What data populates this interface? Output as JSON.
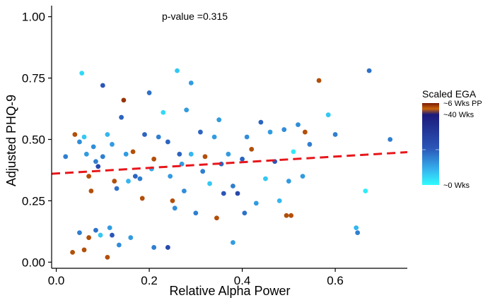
{
  "chart_data": {
    "type": "scatter",
    "xlabel": "Relative Alpha Power",
    "ylabel": "Adjusted PHQ-9",
    "annotation": "p-value =0.315",
    "xlim": [
      -0.01,
      0.755
    ],
    "ylim": [
      -0.025,
      1.045
    ],
    "x_ticks": [
      0.0,
      0.2,
      0.4,
      0.6
    ],
    "x_tick_labels": [
      "0.0",
      "0.2",
      "0.4",
      "0.6"
    ],
    "y_ticks": [
      0.0,
      0.25,
      0.5,
      0.75,
      1.0
    ],
    "y_tick_labels": [
      "0.00",
      "0.25",
      "0.50",
      "0.75",
      "1.00"
    ],
    "trend_line": {
      "color": "#e8161b",
      "style": "dashed",
      "x": [
        -0.01,
        0.755
      ],
      "y": [
        0.36,
        0.448
      ]
    },
    "color_scale": {
      "title": "Scaled EGA",
      "labels": [
        "~6 Wks PP",
        "~40 Wks",
        "~0 Wks"
      ],
      "colors": [
        "#7a1a05",
        "#c8640a",
        "#1c1a7a",
        "#2b56b8",
        "#35b6f0",
        "#2ffcfc"
      ]
    },
    "points": [
      {
        "x": 0.02,
        "y": 0.43,
        "c": 0.4
      },
      {
        "x": 0.04,
        "y": 0.52,
        "c": 0.9
      },
      {
        "x": 0.05,
        "y": 0.49,
        "c": 0.35
      },
      {
        "x": 0.055,
        "y": 0.77,
        "c": 0.1
      },
      {
        "x": 0.06,
        "y": 0.51,
        "c": 0.15
      },
      {
        "x": 0.065,
        "y": 0.44,
        "c": 0.3
      },
      {
        "x": 0.07,
        "y": 0.35,
        "c": 0.9
      },
      {
        "x": 0.075,
        "y": 0.29,
        "c": 0.9
      },
      {
        "x": 0.08,
        "y": 0.47,
        "c": 0.35
      },
      {
        "x": 0.085,
        "y": 0.41,
        "c": 0.4
      },
      {
        "x": 0.09,
        "y": 0.39,
        "c": 0.6
      },
      {
        "x": 0.1,
        "y": 0.72,
        "c": 0.55
      },
      {
        "x": 0.1,
        "y": 0.43,
        "c": 0.4
      },
      {
        "x": 0.11,
        "y": 0.52,
        "c": 0.2
      },
      {
        "x": 0.12,
        "y": 0.48,
        "c": 0.3
      },
      {
        "x": 0.125,
        "y": 0.33,
        "c": 0.9
      },
      {
        "x": 0.13,
        "y": 0.3,
        "c": 0.45
      },
      {
        "x": 0.14,
        "y": 0.59,
        "c": 0.5
      },
      {
        "x": 0.145,
        "y": 0.66,
        "c": 0.95
      },
      {
        "x": 0.15,
        "y": 0.44,
        "c": 0.3
      },
      {
        "x": 0.155,
        "y": 0.33,
        "c": 0.2
      },
      {
        "x": 0.165,
        "y": 0.45,
        "c": 0.9
      },
      {
        "x": 0.17,
        "y": 0.35,
        "c": 0.5
      },
      {
        "x": 0.18,
        "y": 0.34,
        "c": 0.4
      },
      {
        "x": 0.185,
        "y": 0.26,
        "c": 0.9
      },
      {
        "x": 0.19,
        "y": 0.52,
        "c": 0.5
      },
      {
        "x": 0.2,
        "y": 0.69,
        "c": 0.45
      },
      {
        "x": 0.205,
        "y": 0.38,
        "c": 0.25
      },
      {
        "x": 0.21,
        "y": 0.42,
        "c": 0.9
      },
      {
        "x": 0.22,
        "y": 0.51,
        "c": 0.4
      },
      {
        "x": 0.23,
        "y": 0.61,
        "c": 0.1
      },
      {
        "x": 0.24,
        "y": 0.49,
        "c": 0.5
      },
      {
        "x": 0.245,
        "y": 0.35,
        "c": 0.3
      },
      {
        "x": 0.25,
        "y": 0.25,
        "c": 0.9
      },
      {
        "x": 0.255,
        "y": 0.22,
        "c": 0.35
      },
      {
        "x": 0.26,
        "y": 0.78,
        "c": 0.15
      },
      {
        "x": 0.265,
        "y": 0.44,
        "c": 0.5
      },
      {
        "x": 0.27,
        "y": 0.4,
        "c": 0.3
      },
      {
        "x": 0.275,
        "y": 0.29,
        "c": 0.35
      },
      {
        "x": 0.28,
        "y": 0.62,
        "c": 0.3
      },
      {
        "x": 0.29,
        "y": 0.44,
        "c": 0.2
      },
      {
        "x": 0.3,
        "y": 0.2,
        "c": 0.4
      },
      {
        "x": 0.31,
        "y": 0.53,
        "c": 0.5
      },
      {
        "x": 0.315,
        "y": 0.37,
        "c": 0.4
      },
      {
        "x": 0.32,
        "y": 0.43,
        "c": 0.9
      },
      {
        "x": 0.33,
        "y": 0.32,
        "c": 0.15
      },
      {
        "x": 0.34,
        "y": 0.51,
        "c": 0.3
      },
      {
        "x": 0.345,
        "y": 0.18,
        "c": 0.9
      },
      {
        "x": 0.35,
        "y": 0.58,
        "c": 0.3
      },
      {
        "x": 0.355,
        "y": 0.4,
        "c": 0.5
      },
      {
        "x": 0.36,
        "y": 0.28,
        "c": 0.55
      },
      {
        "x": 0.37,
        "y": 0.44,
        "c": 0.3
      },
      {
        "x": 0.38,
        "y": 0.31,
        "c": 0.4
      },
      {
        "x": 0.39,
        "y": 0.28,
        "c": 0.6
      },
      {
        "x": 0.4,
        "y": 0.42,
        "c": 0.5
      },
      {
        "x": 0.405,
        "y": 0.2,
        "c": 0.45
      },
      {
        "x": 0.41,
        "y": 0.51,
        "c": 0.35
      },
      {
        "x": 0.42,
        "y": 0.46,
        "c": 0.9
      },
      {
        "x": 0.43,
        "y": 0.24,
        "c": 0.3
      },
      {
        "x": 0.44,
        "y": 0.57,
        "c": 0.5
      },
      {
        "x": 0.45,
        "y": 0.34,
        "c": 0.15
      },
      {
        "x": 0.46,
        "y": 0.53,
        "c": 0.3
      },
      {
        "x": 0.47,
        "y": 0.41,
        "c": 0.55
      },
      {
        "x": 0.48,
        "y": 0.25,
        "c": 0.2
      },
      {
        "x": 0.49,
        "y": 0.54,
        "c": 0.35
      },
      {
        "x": 0.495,
        "y": 0.19,
        "c": 0.9
      },
      {
        "x": 0.5,
        "y": 0.33,
        "c": 0.3
      },
      {
        "x": 0.505,
        "y": 0.19,
        "c": 0.9
      },
      {
        "x": 0.51,
        "y": 0.45,
        "c": 0.05
      },
      {
        "x": 0.52,
        "y": 0.56,
        "c": 0.35
      },
      {
        "x": 0.53,
        "y": 0.35,
        "c": 0.3
      },
      {
        "x": 0.535,
        "y": 0.53,
        "c": 0.9
      },
      {
        "x": 0.545,
        "y": 0.48,
        "c": 0.4
      },
      {
        "x": 0.565,
        "y": 0.74,
        "c": 0.9
      },
      {
        "x": 0.585,
        "y": 0.6,
        "c": 0.15
      },
      {
        "x": 0.6,
        "y": 0.52,
        "c": 0.4
      },
      {
        "x": 0.645,
        "y": 0.14,
        "c": 0.2
      },
      {
        "x": 0.648,
        "y": 0.12,
        "c": 0.4
      },
      {
        "x": 0.665,
        "y": 0.29,
        "c": 0.05
      },
      {
        "x": 0.673,
        "y": 0.78,
        "c": 0.45
      },
      {
        "x": 0.718,
        "y": 0.5,
        "c": 0.4
      },
      {
        "x": 0.035,
        "y": 0.04,
        "c": 0.9
      },
      {
        "x": 0.05,
        "y": 0.12,
        "c": 0.4
      },
      {
        "x": 0.06,
        "y": 0.05,
        "c": 0.9
      },
      {
        "x": 0.07,
        "y": 0.1,
        "c": 0.9
      },
      {
        "x": 0.085,
        "y": 0.13,
        "c": 0.45
      },
      {
        "x": 0.095,
        "y": 0.11,
        "c": 0.15
      },
      {
        "x": 0.11,
        "y": 0.02,
        "c": 0.9
      },
      {
        "x": 0.115,
        "y": 0.14,
        "c": 0.3
      },
      {
        "x": 0.12,
        "y": 0.11,
        "c": 0.55
      },
      {
        "x": 0.135,
        "y": 0.07,
        "c": 0.35
      },
      {
        "x": 0.16,
        "y": 0.1,
        "c": 0.3
      },
      {
        "x": 0.21,
        "y": 0.06,
        "c": 0.4
      },
      {
        "x": 0.24,
        "y": 0.06,
        "c": 0.6
      },
      {
        "x": 0.38,
        "y": 0.08,
        "c": 0.3
      },
      {
        "x": 0.29,
        "y": 0.73,
        "c": 0.3
      }
    ]
  }
}
